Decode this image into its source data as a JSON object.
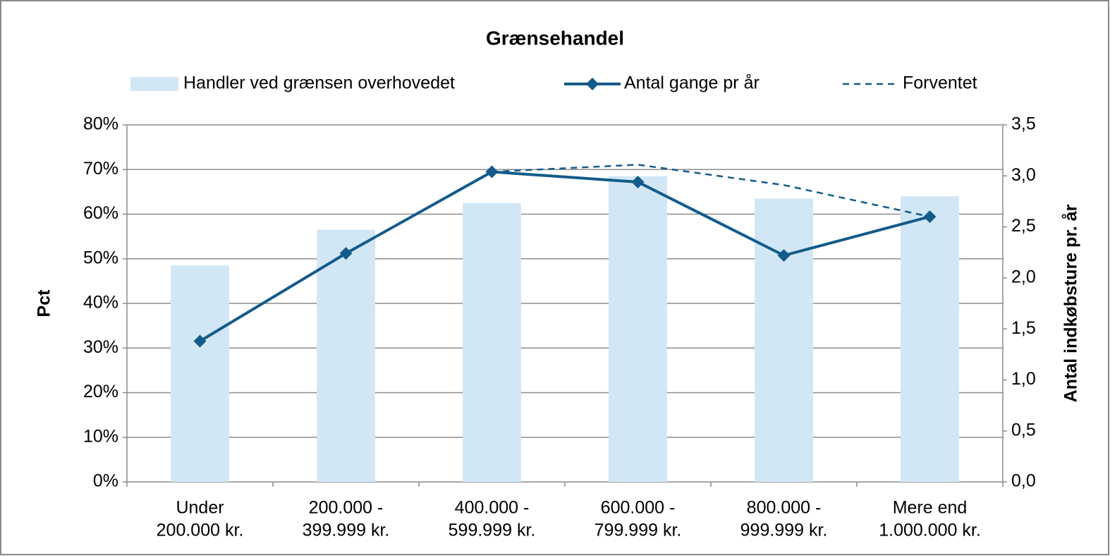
{
  "chart_data": {
    "type": "bar+line",
    "title": "Grænsehandel",
    "categories": [
      [
        "Under",
        "200.000 kr."
      ],
      [
        "200.000 -",
        "399.999 kr."
      ],
      [
        "400.000 -",
        "599.999 kr."
      ],
      [
        "600.000 -",
        "799.999 kr."
      ],
      [
        "800.000 -",
        "999.999 kr."
      ],
      [
        "Mere end",
        "1.000.000 kr."
      ]
    ],
    "series": [
      {
        "name": "Handler ved grænsen overhovedet",
        "type": "bar",
        "color": "#d1e7f6",
        "values": [
          48.5,
          56.5,
          62.5,
          68.5,
          63.5,
          64
        ]
      },
      {
        "name": "Antal gange pr år",
        "type": "line",
        "axis": "y2",
        "color": "#135b8a",
        "marker": "diamond",
        "values": [
          1.38,
          2.24,
          3.04,
          2.94,
          2.22,
          2.6
        ]
      },
      {
        "name": "Forventet",
        "type": "line",
        "axis": "y2",
        "color": "#135b8a",
        "dashed": true,
        "values": [
          null,
          null,
          3.04,
          3.11,
          2.91,
          2.6
        ]
      }
    ],
    "ylabel": "Pct",
    "y2label": "Antal indkøbsture pr. år",
    "ylim": [
      0,
      80
    ],
    "yticks": [
      {
        "value": 0,
        "label": "0%"
      },
      {
        "value": 10,
        "label": "10%"
      },
      {
        "value": 20,
        "label": "20%"
      },
      {
        "value": 30,
        "label": "30%"
      },
      {
        "value": 40,
        "label": "40%"
      },
      {
        "value": 50,
        "label": "50%"
      },
      {
        "value": 60,
        "label": "60%"
      },
      {
        "value": 70,
        "label": "70%"
      },
      {
        "value": 80,
        "label": "80%"
      }
    ],
    "y2lim": [
      0,
      3.5
    ],
    "y2ticks": [
      {
        "value": 0,
        "label": "0,0"
      },
      {
        "value": 0.5,
        "label": "0,5"
      },
      {
        "value": 1,
        "label": "1,0"
      },
      {
        "value": 1.5,
        "label": "1,5"
      },
      {
        "value": 2,
        "label": "2,0"
      },
      {
        "value": 2.5,
        "label": "2,5"
      },
      {
        "value": 3,
        "label": "3,0"
      },
      {
        "value": 3.5,
        "label": "3,5"
      }
    ],
    "grid": true,
    "legend": "top"
  }
}
